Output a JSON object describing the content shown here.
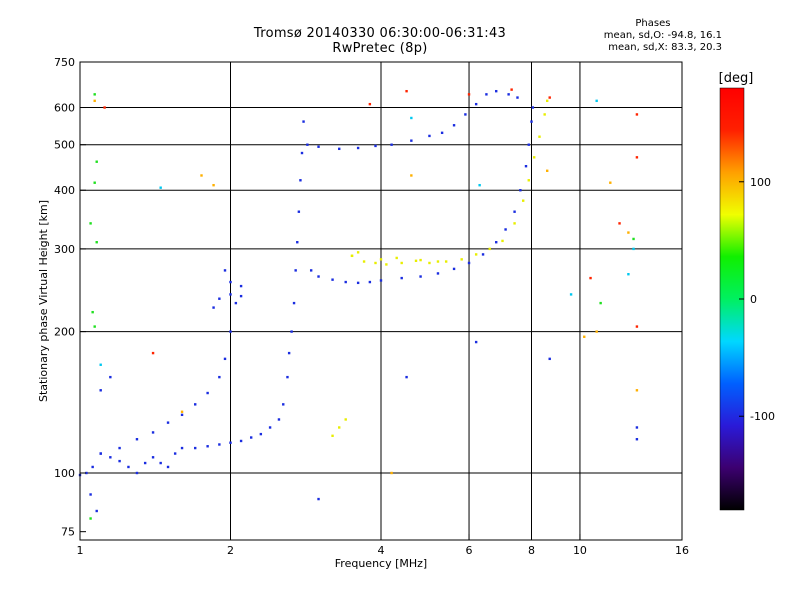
{
  "header": {
    "title_line1": "Tromsø 20140330 06:30:00-06:31:43",
    "title_line2": "RwPretec (8p)"
  },
  "phase_stats": {
    "heading": "Phases",
    "line_o": "mean, sd,O: -94.8, 16.1",
    "line_x": "mean, sd,X: 83.3, 20.3"
  },
  "colorbar": {
    "label": "[deg]",
    "ticks": [
      {
        "value": 100,
        "label": "100"
      },
      {
        "value": 0,
        "label": "0"
      },
      {
        "value": -100,
        "label": "-100"
      }
    ],
    "range": [
      -180,
      180
    ],
    "stops": [
      "#000000",
      "#3c0070",
      "#2a1ad8",
      "#0060ff",
      "#00d8ff",
      "#00f060",
      "#10f000",
      "#f0ff00",
      "#ffa000",
      "#ff2000",
      "#ff0000"
    ]
  },
  "chart_data": {
    "type": "scatter",
    "title": "Tromsø 20140330 06:30:00-06:31:43",
    "subtitle": "RwPretec (8p)",
    "xlabel": "Frequency [MHz]",
    "ylabel": "Stationary phase Virtual Height [km]",
    "x_scale": "log",
    "y_scale": "log",
    "xlim": [
      1,
      16
    ],
    "ylim": [
      72,
      750
    ],
    "x_ticks": [
      1,
      2,
      4,
      6,
      8,
      10,
      16
    ],
    "y_ticks": [
      75,
      100,
      200,
      300,
      400,
      500,
      600,
      750
    ],
    "grid": true,
    "color_quantity": "phase [deg]",
    "series": [
      {
        "color": "#1a2de0",
        "points": [
          [
            1.0,
            99
          ],
          [
            1.03,
            100
          ],
          [
            1.06,
            103
          ],
          [
            1.1,
            110
          ],
          [
            1.15,
            108
          ],
          [
            1.2,
            106
          ],
          [
            1.25,
            103
          ],
          [
            1.3,
            100
          ],
          [
            1.35,
            105
          ],
          [
            1.4,
            108
          ],
          [
            1.45,
            105
          ],
          [
            1.5,
            103
          ],
          [
            1.55,
            110
          ],
          [
            1.6,
            113
          ],
          [
            1.7,
            113
          ],
          [
            1.8,
            114
          ],
          [
            1.9,
            115
          ],
          [
            2.0,
            116
          ],
          [
            2.1,
            117
          ],
          [
            2.2,
            119
          ],
          [
            2.3,
            121
          ],
          [
            2.4,
            125
          ],
          [
            2.5,
            130
          ],
          [
            2.55,
            140
          ],
          [
            2.6,
            160
          ],
          [
            2.62,
            180
          ],
          [
            2.65,
            200
          ],
          [
            2.68,
            230
          ],
          [
            2.7,
            270
          ],
          [
            2.72,
            310
          ],
          [
            2.74,
            360
          ],
          [
            2.76,
            420
          ],
          [
            2.78,
            480
          ],
          [
            2.8,
            560
          ],
          [
            1.1,
            110
          ],
          [
            1.2,
            113
          ],
          [
            1.3,
            118
          ],
          [
            1.4,
            122
          ],
          [
            1.5,
            128
          ],
          [
            1.6,
            133
          ],
          [
            1.7,
            140
          ],
          [
            1.8,
            148
          ],
          [
            1.9,
            160
          ],
          [
            1.95,
            175
          ],
          [
            2.0,
            200
          ],
          [
            2.05,
            230
          ],
          [
            2.1,
            250
          ],
          [
            1.85,
            225
          ],
          [
            1.9,
            235
          ],
          [
            2.0,
            240
          ],
          [
            2.1,
            238
          ],
          [
            1.95,
            270
          ],
          [
            2.0,
            255
          ],
          [
            2.9,
            270
          ],
          [
            3.0,
            262
          ],
          [
            3.2,
            258
          ],
          [
            3.4,
            255
          ],
          [
            3.6,
            254
          ],
          [
            3.8,
            255
          ],
          [
            4.0,
            257
          ],
          [
            4.4,
            260
          ],
          [
            4.8,
            262
          ],
          [
            5.2,
            266
          ],
          [
            5.6,
            272
          ],
          [
            6.0,
            280
          ],
          [
            6.4,
            292
          ],
          [
            6.8,
            310
          ],
          [
            7.1,
            330
          ],
          [
            7.4,
            360
          ],
          [
            7.6,
            400
          ],
          [
            7.8,
            450
          ],
          [
            7.9,
            500
          ],
          [
            8.0,
            560
          ],
          [
            8.05,
            600
          ],
          [
            2.85,
            500
          ],
          [
            3.0,
            495
          ],
          [
            3.3,
            490
          ],
          [
            3.6,
            492
          ],
          [
            3.9,
            497
          ],
          [
            4.2,
            500
          ],
          [
            4.6,
            510
          ],
          [
            5.0,
            522
          ],
          [
            5.3,
            530
          ],
          [
            5.6,
            550
          ],
          [
            5.9,
            580
          ],
          [
            6.2,
            610
          ],
          [
            6.5,
            640
          ],
          [
            6.8,
            650
          ],
          [
            7.2,
            640
          ],
          [
            7.5,
            630
          ],
          [
            3.0,
            88
          ],
          [
            4.5,
            160
          ],
          [
            6.2,
            190
          ],
          [
            8.7,
            175
          ],
          [
            13.0,
            125
          ],
          [
            13.0,
            118
          ],
          [
            1.05,
            90
          ],
          [
            1.08,
            83
          ],
          [
            1.1,
            150
          ],
          [
            1.15,
            160
          ]
        ]
      },
      {
        "color": "#e8ee00",
        "points": [
          [
            3.5,
            290
          ],
          [
            3.7,
            282
          ],
          [
            3.9,
            280
          ],
          [
            4.1,
            278
          ],
          [
            4.4,
            280
          ],
          [
            4.7,
            283
          ],
          [
            5.0,
            280
          ],
          [
            5.4,
            282
          ],
          [
            5.8,
            285
          ],
          [
            6.2,
            292
          ],
          [
            6.6,
            300
          ],
          [
            7.0,
            312
          ],
          [
            7.4,
            340
          ],
          [
            7.7,
            380
          ],
          [
            7.9,
            420
          ],
          [
            8.1,
            470
          ],
          [
            8.3,
            520
          ],
          [
            8.5,
            580
          ],
          [
            8.6,
            620
          ],
          [
            3.2,
            120
          ],
          [
            3.3,
            125
          ],
          [
            3.4,
            130
          ],
          [
            3.5,
            290
          ],
          [
            3.6,
            295
          ],
          [
            4.0,
            285
          ],
          [
            4.3,
            287
          ],
          [
            4.8,
            284
          ],
          [
            5.2,
            282
          ]
        ]
      },
      {
        "color": "#ff2400",
        "points": [
          [
            1.12,
            600
          ],
          [
            1.4,
            180
          ],
          [
            3.8,
            610
          ],
          [
            4.5,
            650
          ],
          [
            6.0,
            640
          ],
          [
            7.3,
            655
          ],
          [
            8.7,
            630
          ],
          [
            12.0,
            340
          ],
          [
            13.0,
            580
          ],
          [
            13.0,
            470
          ],
          [
            13.0,
            205
          ],
          [
            10.5,
            260
          ]
        ]
      },
      {
        "color": "#ffb000",
        "points": [
          [
            1.6,
            135
          ],
          [
            1.75,
            430
          ],
          [
            1.85,
            410
          ],
          [
            4.2,
            100
          ],
          [
            4.6,
            430
          ],
          [
            8.6,
            440
          ],
          [
            10.2,
            195
          ],
          [
            10.8,
            200
          ],
          [
            11.5,
            415
          ],
          [
            13.0,
            150
          ],
          [
            12.5,
            325
          ],
          [
            1.07,
            620
          ]
        ]
      },
      {
        "color": "#20e020",
        "points": [
          [
            1.07,
            640
          ],
          [
            1.08,
            460
          ],
          [
            1.05,
            340
          ],
          [
            1.07,
            415
          ],
          [
            1.08,
            310
          ],
          [
            1.06,
            220
          ],
          [
            1.07,
            205
          ],
          [
            1.05,
            80
          ],
          [
            11.0,
            230
          ],
          [
            12.8,
            315
          ]
        ]
      },
      {
        "color": "#00c8f0",
        "points": [
          [
            1.1,
            170
          ],
          [
            1.45,
            405
          ],
          [
            4.6,
            570
          ],
          [
            10.8,
            620
          ],
          [
            12.5,
            265
          ],
          [
            12.8,
            300
          ],
          [
            6.3,
            410
          ],
          [
            9.6,
            240
          ]
        ]
      }
    ]
  }
}
